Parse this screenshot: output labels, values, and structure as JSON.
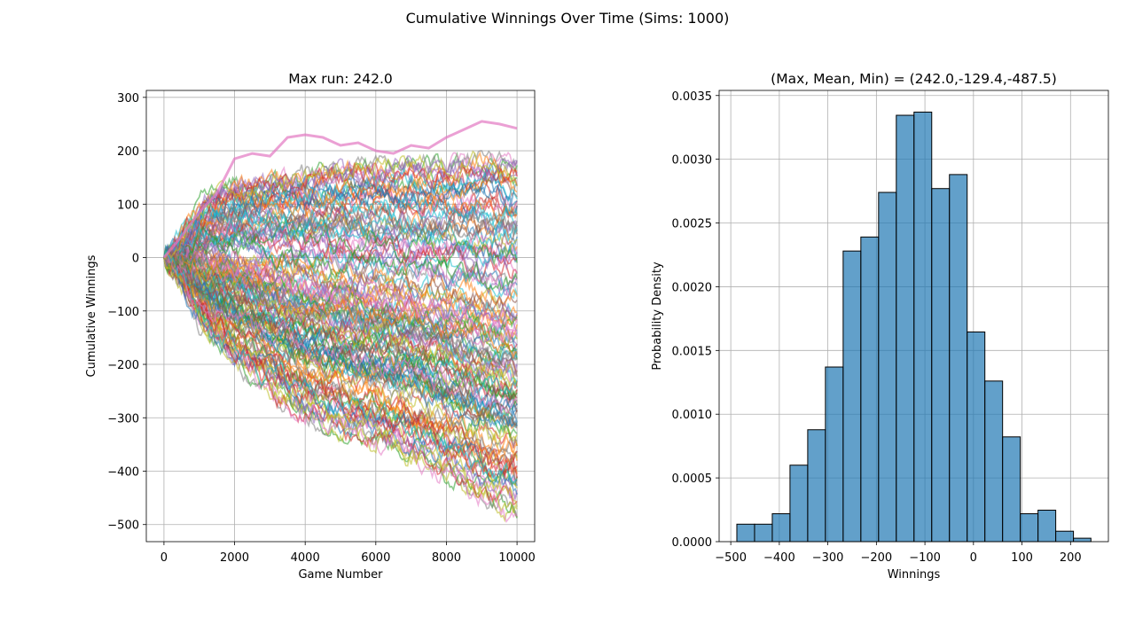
{
  "figure": {
    "suptitle": "Cumulative Winnings Over Time (Sims: 1000)"
  },
  "chart_data": [
    {
      "type": "line",
      "title": "Max run: 242.0",
      "xlabel": "Game Number",
      "ylabel": "Cumulative Winnings",
      "xlim": [
        -500,
        10500
      ],
      "ylim": [
        -532,
        313
      ],
      "xticks": [
        0,
        2000,
        4000,
        6000,
        8000,
        10000
      ],
      "yticks": [
        -500,
        -400,
        -300,
        -200,
        -100,
        0,
        100,
        200,
        300
      ],
      "grid": true,
      "n_simulations": 1000,
      "n_games": 10000,
      "max_final": 242.0,
      "min_final": -487.5,
      "mean_final": -129.4,
      "highlighted_series": {
        "color": "#e377c2",
        "points": [
          [
            0,
            0
          ],
          [
            500,
            40
          ],
          [
            1000,
            85
          ],
          [
            1500,
            120
          ],
          [
            2000,
            185
          ],
          [
            2500,
            195
          ],
          [
            3000,
            190
          ],
          [
            3500,
            225
          ],
          [
            4000,
            230
          ],
          [
            4500,
            225
          ],
          [
            5000,
            210
          ],
          [
            5500,
            215
          ],
          [
            6000,
            200
          ],
          [
            6500,
            195
          ],
          [
            7000,
            210
          ],
          [
            7500,
            205
          ],
          [
            8000,
            225
          ],
          [
            8500,
            240
          ],
          [
            9000,
            255
          ],
          [
            9500,
            250
          ],
          [
            10000,
            242
          ]
        ]
      },
      "envelope_upper": [
        [
          0,
          0
        ],
        [
          1000,
          110
        ],
        [
          2000,
          140
        ],
        [
          3000,
          150
        ],
        [
          4000,
          160
        ],
        [
          5000,
          170
        ],
        [
          6000,
          175
        ],
        [
          7000,
          175
        ],
        [
          8000,
          180
        ],
        [
          9000,
          185
        ],
        [
          10000,
          180
        ]
      ],
      "envelope_lower": [
        [
          0,
          0
        ],
        [
          1000,
          -150
        ],
        [
          2000,
          -200
        ],
        [
          3000,
          -260
        ],
        [
          4000,
          -300
        ],
        [
          5000,
          -330
        ],
        [
          6000,
          -350
        ],
        [
          7000,
          -380
        ],
        [
          8000,
          -420
        ],
        [
          9000,
          -460
        ],
        [
          10000,
          -487.5
        ]
      ],
      "colors": [
        "#1f77b4",
        "#ff7f0e",
        "#2ca02c",
        "#d62728",
        "#9467bd",
        "#8c564b",
        "#e377c2",
        "#7f7f7f",
        "#bcbd22",
        "#17becf"
      ]
    },
    {
      "type": "bar",
      "title": "(Max, Mean, Min) = (242.0,-129.4,-487.5)",
      "xlabel": "Winnings",
      "ylabel": "Probability Density",
      "xlim": [
        -524,
        278
      ],
      "ylim": [
        0,
        0.00354
      ],
      "xticks": [
        -500,
        -400,
        -300,
        -200,
        -100,
        0,
        100,
        200
      ],
      "yticks": [
        "0.0000",
        "0.0005",
        "0.0010",
        "0.0015",
        "0.0020",
        "0.0025",
        "0.0030",
        "0.0035"
      ],
      "ytick_values": [
        0,
        0.0005,
        0.001,
        0.0015,
        0.002,
        0.0025,
        0.003,
        0.0035
      ],
      "grid": true,
      "bar_color": "#1f77b4",
      "bin_edges": [
        -487.5,
        -451.0,
        -414.5,
        -378.0,
        -341.5,
        -305.0,
        -268.5,
        -232.0,
        -195.5,
        -159.0,
        -122.5,
        -86.0,
        -49.5,
        -13.0,
        23.5,
        60.0,
        96.5,
        133.0,
        169.5,
        206.0,
        242.0
      ],
      "values": [
        0.000137,
        0.000137,
        0.000219,
        0.0006,
        0.000878,
        0.00137,
        0.00228,
        0.00239,
        0.00274,
        0.003345,
        0.00337,
        0.00277,
        0.00288,
        0.001645,
        0.00126,
        0.000822,
        0.000219,
        0.000247,
        8.2e-05,
        2.7e-05
      ]
    }
  ]
}
